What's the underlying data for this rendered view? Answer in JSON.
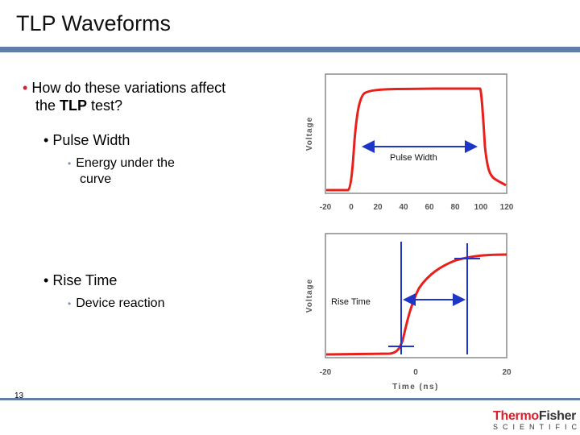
{
  "slide": {
    "title": "TLP Waveforms",
    "page_number": "13"
  },
  "bullets": {
    "b1_line1": "How do these variations affect",
    "b1_line2_pre": "the ",
    "b1_line2_bold": "TLP",
    "b1_line2_post": " test?",
    "pulse_width": "Pulse Width",
    "energy_line1": "Energy under the",
    "energy_line2": "curve",
    "rise_time": "Rise Time",
    "device_reaction": "Device reaction"
  },
  "chart_data": [
    {
      "type": "line",
      "title": "",
      "xlabel": "",
      "ylabel": "Voltage",
      "x_ticks": [
        "-20",
        "0",
        "20",
        "40",
        "60",
        "80",
        "100",
        "120"
      ],
      "xlim": [
        -20,
        125
      ],
      "annotation": "Pulse Width",
      "series": [
        {
          "name": "waveform",
          "color": "#e8201c"
        }
      ]
    },
    {
      "type": "line",
      "title": "",
      "xlabel": "Time (ns)",
      "ylabel": "Voltage",
      "x_ticks": [
        "-20",
        "0",
        "20"
      ],
      "xlim": [
        -20,
        20
      ],
      "annotation": "Rise Time",
      "series": [
        {
          "name": "waveform",
          "color": "#e8201c"
        }
      ]
    }
  ],
  "logo": {
    "brand_a": "Thermo",
    "brand_b": "Fisher",
    "brand_sub": "SCIENTIFIC"
  },
  "colors": {
    "accent_red": "#d6212e",
    "rule_blue": "#5f7fa8",
    "marker_blue": "#1e35c8"
  }
}
